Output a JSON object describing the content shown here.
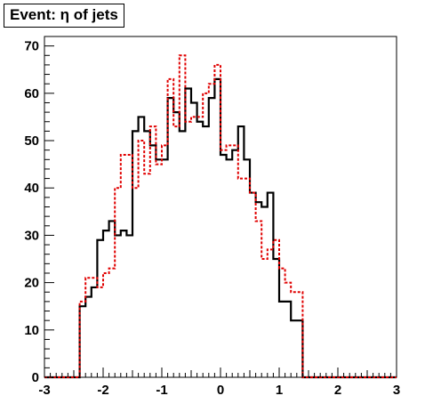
{
  "chart_data": {
    "type": "histogram",
    "title": "Event: η of jets",
    "xlim": [
      -3,
      3
    ],
    "ylim": [
      0,
      72
    ],
    "x_ticks": [
      -3,
      -2,
      -1,
      0,
      1,
      2,
      3
    ],
    "y_ticks": [
      0,
      10,
      20,
      30,
      40,
      50,
      60,
      70
    ],
    "bin_edges_start": -3.0,
    "bin_width": 0.1,
    "series": [
      {
        "style": "solid",
        "color": "#000000",
        "values": [
          0,
          0,
          0,
          0,
          0,
          0,
          15,
          17,
          19,
          29,
          31,
          33,
          30,
          31,
          30,
          52,
          55,
          52,
          49,
          46,
          46,
          59,
          56,
          52,
          61,
          58,
          54,
          53,
          59,
          63,
          47,
          46,
          48,
          53,
          46,
          39,
          37,
          36,
          39,
          25,
          16,
          16,
          12,
          12,
          0,
          0,
          0,
          0,
          0,
          0,
          0,
          0,
          0,
          0,
          0,
          0,
          0,
          0,
          0,
          0
        ]
      },
      {
        "style": "dashed",
        "color": "#e00000",
        "values": [
          0,
          0,
          0,
          0,
          0,
          0,
          16,
          21,
          21,
          19,
          22,
          23,
          40,
          47,
          47,
          40,
          50,
          43,
          53,
          45,
          49,
          63,
          53,
          68,
          54,
          55,
          55,
          60,
          62,
          66,
          48,
          49,
          49,
          42,
          42,
          39,
          33,
          25,
          27,
          29,
          23,
          20,
          18,
          18,
          0,
          0,
          0,
          0,
          0,
          0,
          0,
          0,
          0,
          0,
          0,
          0,
          0,
          0,
          0,
          0
        ]
      }
    ]
  }
}
